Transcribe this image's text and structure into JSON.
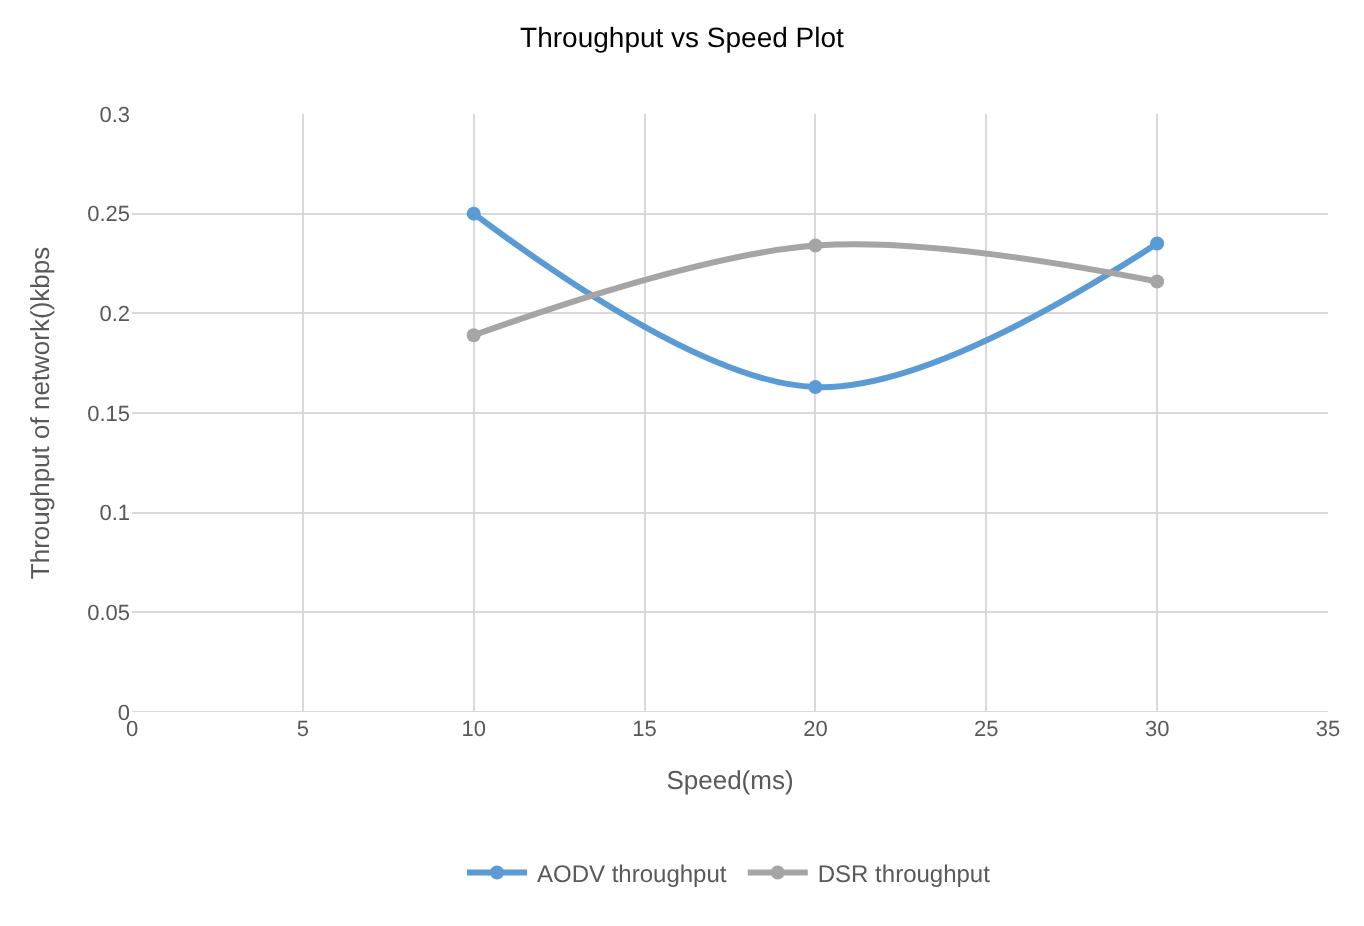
{
  "chart_data": {
    "type": "line",
    "title": "Throughput vs Speed Plot",
    "xlabel": "Speed(ms)",
    "ylabel": "Throughput of network()kbps",
    "x": [
      10,
      20,
      30
    ],
    "series": [
      {
        "name": "AODV throughput",
        "color": "#5b9bd5",
        "values": [
          0.25,
          0.163,
          0.235
        ]
      },
      {
        "name": "DSR throughput",
        "color": "#a5a5a5",
        "values": [
          0.189,
          0.234,
          0.216
        ]
      }
    ],
    "xlim": [
      0,
      35
    ],
    "xticks": [
      0,
      5,
      10,
      15,
      20,
      25,
      30,
      35
    ],
    "ylim": [
      0,
      0.3
    ],
    "yticks": [
      0,
      {
        "value": 0.05,
        "label": "0.05"
      },
      {
        "value": 0.1,
        "label": "0.1"
      },
      {
        "value": 0.15,
        "label": "0.15"
      },
      {
        "value": 0.2,
        "label": "0.2"
      },
      {
        "value": 0.25,
        "label": "0.25"
      },
      {
        "value": 0.3,
        "label": "0.3"
      }
    ],
    "grid": true,
    "legend": "bottom",
    "marker": "circle",
    "line_style": "solid"
  }
}
